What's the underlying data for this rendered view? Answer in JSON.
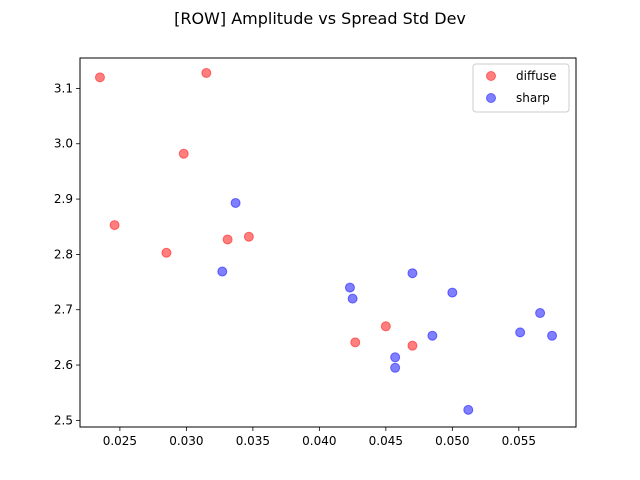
{
  "chart_data": {
    "type": "scatter",
    "title": "[ROW] Amplitude vs Spread Std Dev",
    "xlabel": "",
    "ylabel": "",
    "xlim": [
      0.022,
      0.0593
    ],
    "ylim": [
      2.488,
      3.155
    ],
    "grid": false,
    "legend_position": "top-right",
    "x_ticks": [
      0.025,
      0.03,
      0.035,
      0.04,
      0.045,
      0.05,
      0.055
    ],
    "x_tick_labels": [
      "0.025",
      "0.030",
      "0.035",
      "0.040",
      "0.045",
      "0.050",
      "0.055"
    ],
    "y_ticks": [
      2.5,
      2.6,
      2.7,
      2.8,
      2.9,
      3.0,
      3.1
    ],
    "y_tick_labels": [
      "2.5",
      "2.6",
      "2.7",
      "2.8",
      "2.9",
      "3.0",
      "3.1"
    ],
    "series": [
      {
        "name": "diffuse",
        "color": "#ff0000",
        "points": [
          {
            "x": 0.0235,
            "y": 3.12
          },
          {
            "x": 0.0315,
            "y": 3.128
          },
          {
            "x": 0.0298,
            "y": 2.982
          },
          {
            "x": 0.0246,
            "y": 2.853
          },
          {
            "x": 0.0285,
            "y": 2.803
          },
          {
            "x": 0.0331,
            "y": 2.827
          },
          {
            "x": 0.0347,
            "y": 2.832
          },
          {
            "x": 0.0427,
            "y": 2.641
          },
          {
            "x": 0.045,
            "y": 2.67
          },
          {
            "x": 0.047,
            "y": 2.635
          }
        ]
      },
      {
        "name": "sharp",
        "color": "#0000ff",
        "points": [
          {
            "x": 0.0337,
            "y": 2.893
          },
          {
            "x": 0.0327,
            "y": 2.769
          },
          {
            "x": 0.0423,
            "y": 2.74
          },
          {
            "x": 0.0425,
            "y": 2.72
          },
          {
            "x": 0.047,
            "y": 2.766
          },
          {
            "x": 0.05,
            "y": 2.731
          },
          {
            "x": 0.0485,
            "y": 2.653
          },
          {
            "x": 0.0457,
            "y": 2.614
          },
          {
            "x": 0.0457,
            "y": 2.595
          },
          {
            "x": 0.0512,
            "y": 2.519
          },
          {
            "x": 0.0551,
            "y": 2.659
          },
          {
            "x": 0.0566,
            "y": 2.694
          },
          {
            "x": 0.0575,
            "y": 2.653
          }
        ]
      }
    ]
  }
}
